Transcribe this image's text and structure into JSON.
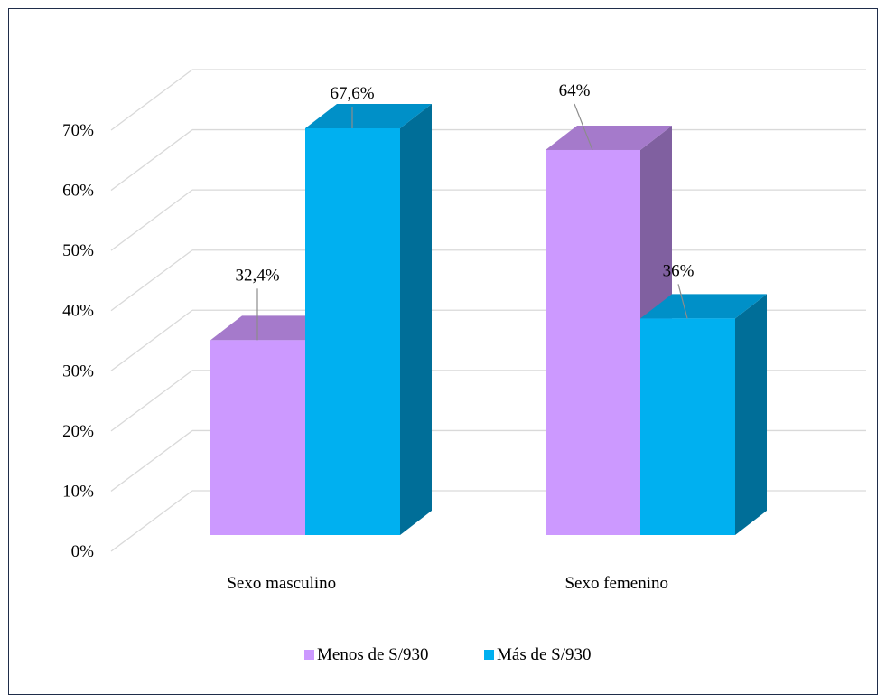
{
  "chart_data": {
    "type": "bar",
    "style": "3d-clustered-column",
    "categories": [
      "Sexo masculino",
      "Sexo femenino"
    ],
    "series": [
      {
        "name": "Menos de S/930",
        "values": [
          32.4,
          64
        ],
        "labels": [
          "32,4%",
          "64%"
        ]
      },
      {
        "name": "Más de S/930",
        "values": [
          67.6,
          36
        ],
        "labels": [
          "67,6%",
          "36%"
        ]
      }
    ],
    "y_unit": "%",
    "ylim": [
      0,
      70
    ],
    "y_ticks": [
      0,
      10,
      20,
      30,
      40,
      50,
      60,
      70
    ],
    "y_tick_labels": [
      "0%",
      "10%",
      "20%",
      "30%",
      "40%",
      "50%",
      "60%",
      "70%"
    ],
    "title": "",
    "xlabel": "",
    "ylabel": "",
    "grid": true,
    "legend_position": "bottom",
    "colors": {
      "series_0_front": "#cc99ff",
      "series_0_top": "#a57acb",
      "series_0_side": "#8060a0",
      "series_1_front": "#00b0f0",
      "series_1_top": "#0090c8",
      "series_1_side": "#006e98",
      "gridline": "#d9d9d9",
      "frame": "#1f2d4a"
    }
  }
}
